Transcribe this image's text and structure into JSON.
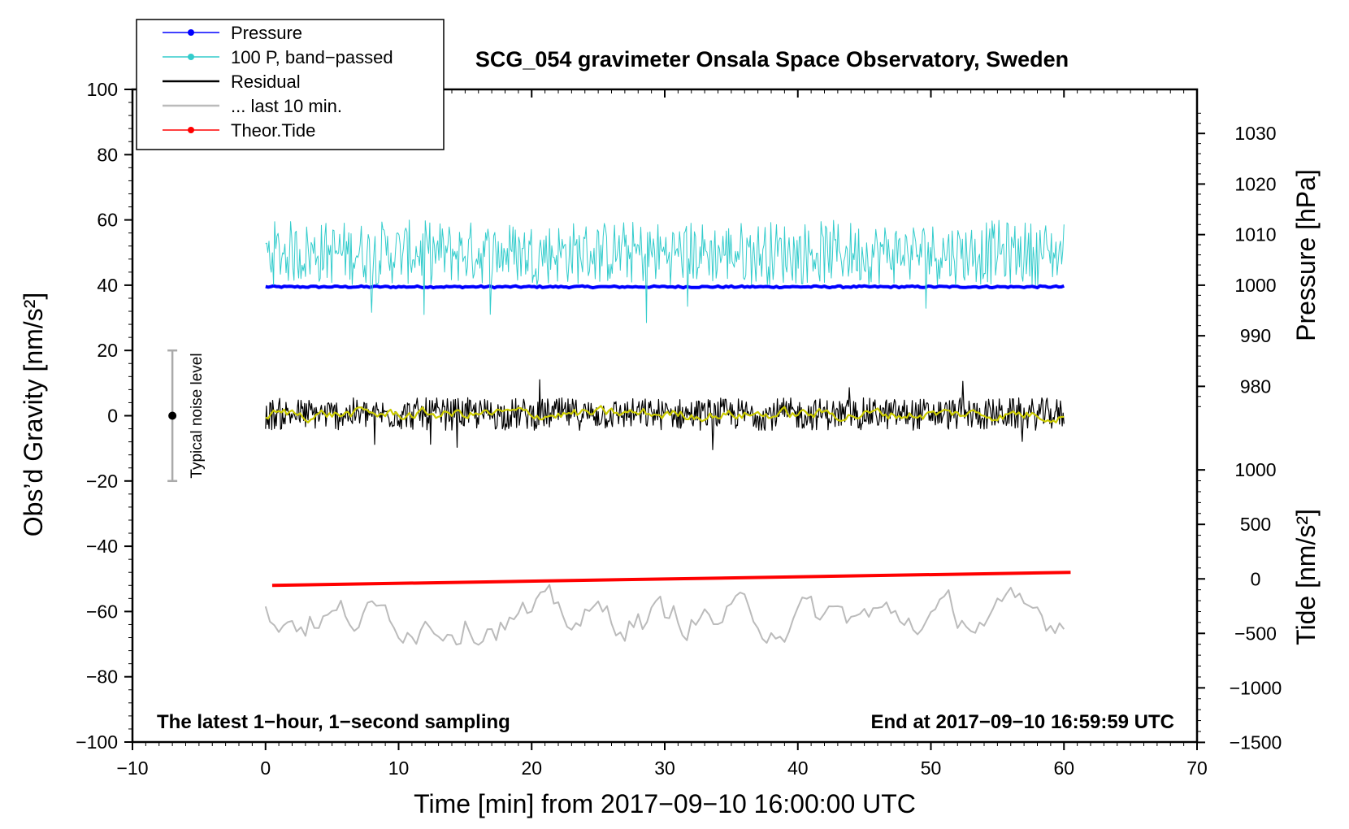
{
  "chart_data": {
    "type": "line",
    "title": "SCG_054 gravimeter Onsala Space Observatory, Sweden",
    "xlabel": "Time [min] from 2017−09−10 16:00:00 UTC",
    "ylabel_left": "Obs’d Gravity [nm/s²]",
    "ylabel_right_pressure": "Pressure [hPa]",
    "ylabel_right_tide": "Tide [nm/s²]",
    "xlim": [
      -10,
      70
    ],
    "ylim_left": [
      -100,
      100
    ],
    "x_ticks": [
      "−10",
      "0",
      "10",
      "20",
      "30",
      "40",
      "50",
      "60",
      "70"
    ],
    "y_ticks_left": [
      "100",
      "80",
      "60",
      "40",
      "20",
      "0",
      "−20",
      "−40",
      "−60",
      "−80",
      "−100"
    ],
    "pressure_ticks": [
      "1030",
      "1020",
      "1010",
      "1000",
      "990",
      "980"
    ],
    "tide_ticks": [
      "1000",
      "500",
      "0",
      "−500",
      "−1000",
      "−1500"
    ],
    "annotation_left": "The latest 1−hour, 1−second sampling",
    "annotation_right": "End at 2017−09−10 16:59:59 UTC",
    "noise_label": "Typical noise level",
    "noise_bar": {
      "x": -7,
      "center": 0,
      "half_range": 20
    },
    "legend": [
      {
        "label": "Pressure",
        "color": "#0000ff",
        "marker": true
      },
      {
        "label": "100 P, band−passed",
        "color": "#33cccc",
        "marker": true
      },
      {
        "label": "Residual",
        "color": "#000000",
        "marker": false
      },
      {
        "label": "... last 10 min.",
        "color": "#bbbbbb",
        "marker": false
      },
      {
        "label": "Theor.Tide",
        "color": "#ff0000",
        "marker": true
      }
    ],
    "series": [
      {
        "name": "Pressure",
        "color": "#0000ff",
        "x_range": [
          0,
          60
        ],
        "level": 39.5,
        "amplitude": 0.3
      },
      {
        "name": "100 P, band−passed",
        "color": "#33cccc",
        "x_range": [
          0,
          60
        ],
        "level": 50,
        "amplitude": 10
      },
      {
        "name": "Residual",
        "color": "#000000",
        "x_range": [
          0,
          60
        ],
        "level": 0.5,
        "amplitude": 5
      },
      {
        "name": "Residual (smoothed)",
        "color": "#cccc00",
        "x_range": [
          0,
          60
        ],
        "level": 0.5,
        "amplitude": 1.5
      },
      {
        "name": "Theor.Tide",
        "color": "#ff0000",
        "x_range": [
          0.5,
          60.5
        ],
        "y_start": -52,
        "y_end": -48
      },
      {
        "name": "... last 10 min.",
        "color": "#bbbbbb",
        "x_range": [
          0,
          60
        ],
        "level": -62,
        "amplitude": 5
      }
    ]
  }
}
